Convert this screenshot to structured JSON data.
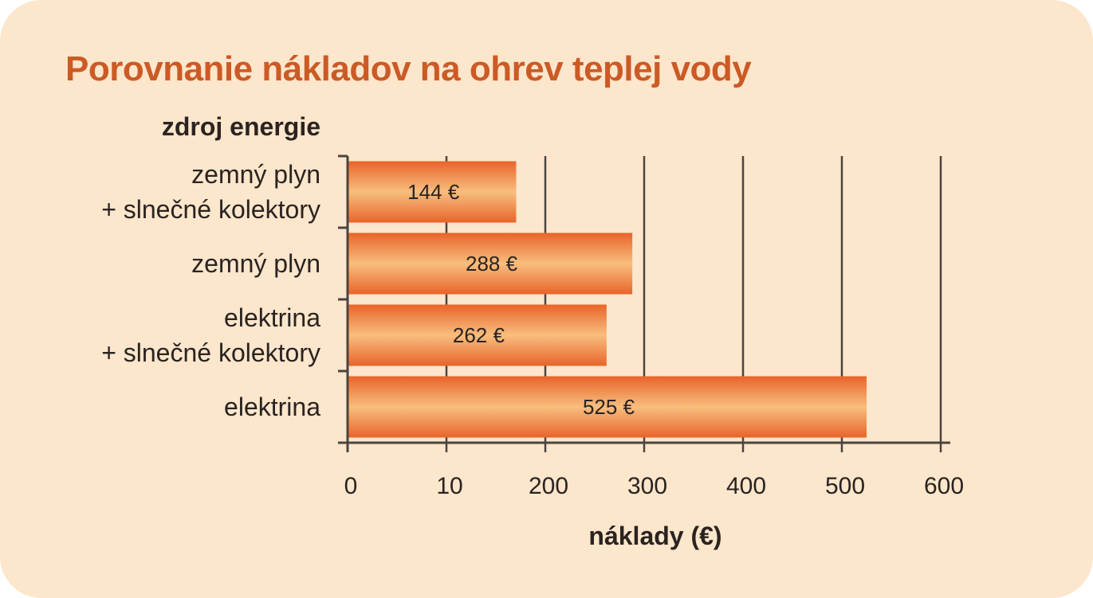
{
  "chart_data": {
    "type": "bar",
    "orientation": "horizontal",
    "title": "Porovnanie nákladov na ohrev teplej vody",
    "ylabel": "zdroj energie",
    "xlabel": "náklady (€)",
    "categories": [
      [
        "zemný plyn",
        "+ slnečné kolektory"
      ],
      [
        "zemný plyn"
      ],
      [
        "elektrina",
        "+ slnečné kolektory"
      ],
      [
        "elektrina"
      ]
    ],
    "values": [
      144,
      288,
      262,
      525
    ],
    "value_labels": [
      "144 €",
      "288 €",
      "262 €",
      "525 €"
    ],
    "xticks": [
      "0",
      "10",
      "200",
      "300",
      "400",
      "500",
      "600"
    ],
    "xlim": [
      0,
      600
    ],
    "grid": "vertical",
    "colors": {
      "background": "#fce6cc",
      "title": "#cc5a25",
      "bar_edge": "#e8642a",
      "bar_center": "#f8be7e",
      "grid": "#4a4440",
      "text": "#2a2320"
    }
  }
}
